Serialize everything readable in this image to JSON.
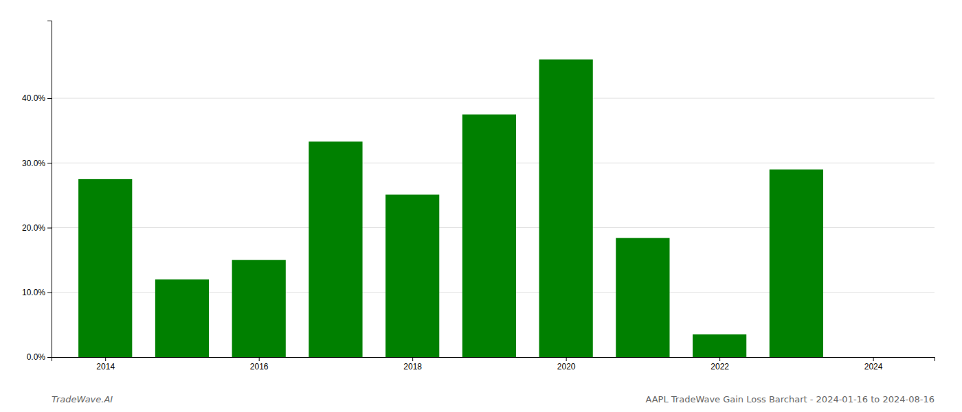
{
  "chart_data": {
    "type": "bar",
    "x": [
      2014,
      2015,
      2016,
      2017,
      2018,
      2019,
      2020,
      2021,
      2022,
      2023,
      2024
    ],
    "values": [
      0.275,
      0.12,
      0.15,
      0.333,
      0.251,
      0.375,
      0.46,
      0.184,
      0.035,
      0.29,
      0.0
    ],
    "color": "#008000",
    "xlim": [
      2013.3,
      2024.8
    ],
    "xticks": [
      2014,
      2016,
      2018,
      2020,
      2022,
      2024
    ],
    "ylim": [
      0,
      0.52
    ],
    "yticks": [
      {
        "value": 0.0,
        "label": "0.0%"
      },
      {
        "value": 0.1,
        "label": "10.0%"
      },
      {
        "value": 0.2,
        "label": "20.0%"
      },
      {
        "value": 0.3,
        "label": "30.0%"
      },
      {
        "value": 0.4,
        "label": "40.0%"
      }
    ],
    "grid": true,
    "annotations": [
      "TradeWave.AI",
      "AAPL TradeWave Gain Loss Barchart - 2024-01-16 to 2024-08-16"
    ]
  }
}
